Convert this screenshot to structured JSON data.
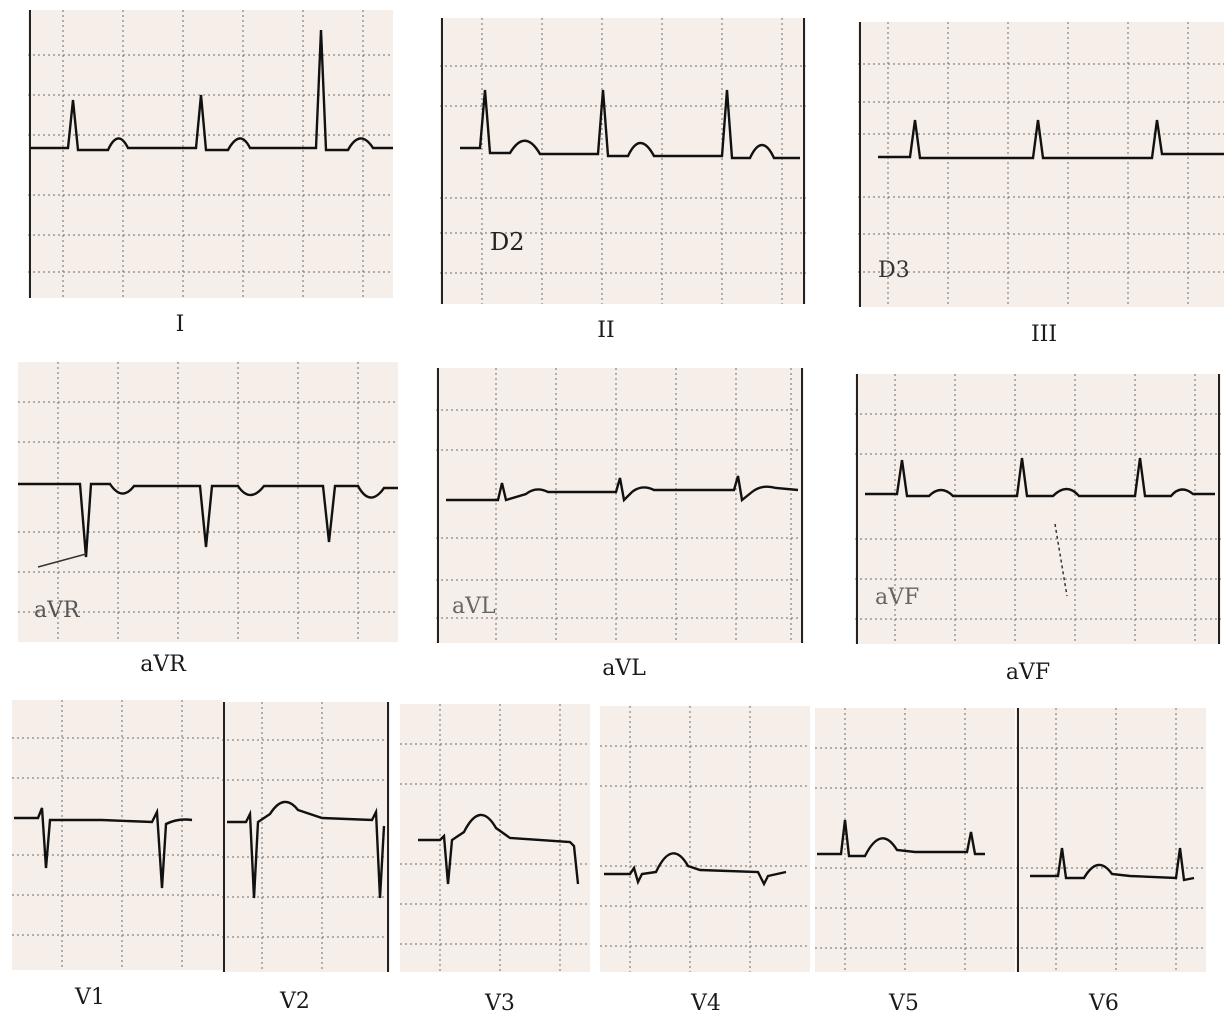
{
  "leads": {
    "I": "I",
    "II": "II",
    "III": "III",
    "aVR": "aVR",
    "aVL": "aVL",
    "aVF": "aVF",
    "V1": "V1",
    "V2": "V2",
    "V3": "V3",
    "V4": "V4",
    "V5": "V5",
    "V6": "V6"
  },
  "colors": {
    "paper": "#f6efe9",
    "grid": "#6b6b6b",
    "trace": "#111111"
  }
}
